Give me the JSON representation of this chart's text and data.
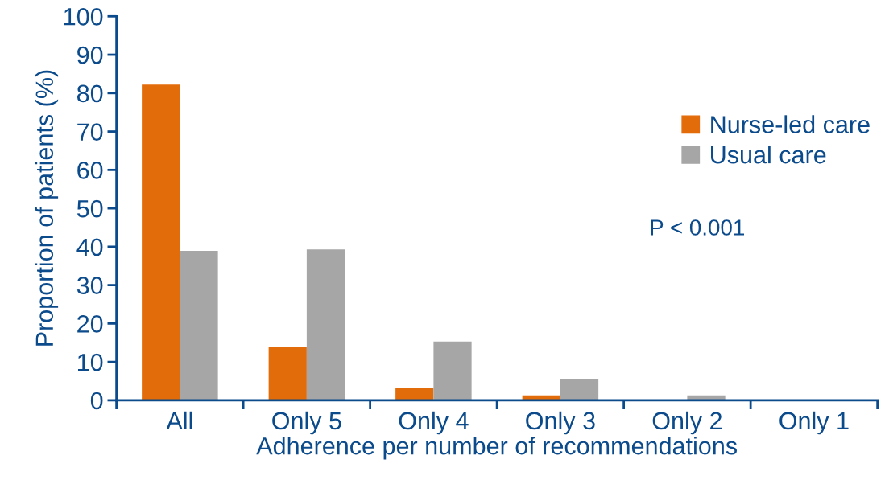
{
  "chart_data": {
    "type": "bar",
    "ylabel": "Proportion of patients (%)",
    "xlabel": "Adherence per number of recommendations",
    "categories": [
      "All",
      "Only 5",
      "Only 4",
      "Only 3",
      "Only 2",
      "Only 1"
    ],
    "series": [
      {
        "name": "Nurse-led care",
        "color": "#e36c0a",
        "values": [
          82.2,
          13.8,
          3.1,
          1.3,
          0,
          0
        ]
      },
      {
        "name": "Usual care",
        "color": "#a6a6a6",
        "values": [
          38.9,
          39.3,
          15.3,
          5.6,
          1.3,
          0
        ]
      }
    ],
    "ylim": [
      0,
      100
    ],
    "yticks": [
      0,
      10,
      20,
      30,
      40,
      50,
      60,
      70,
      80,
      90,
      100
    ],
    "annotations": [
      "P < 0.001"
    ],
    "legend": "top right",
    "grid": false
  }
}
